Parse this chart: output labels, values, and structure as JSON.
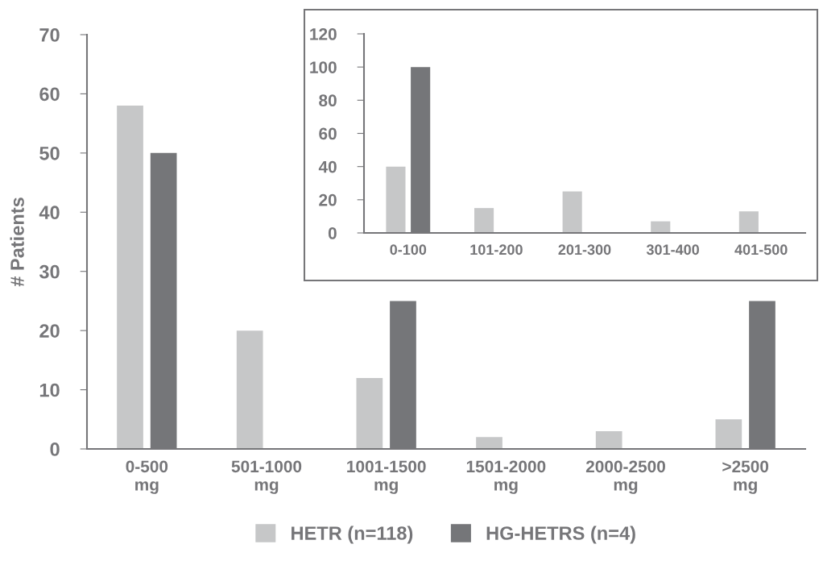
{
  "chart_data": [
    {
      "type": "bar",
      "ylabel": "# Patients",
      "categories": [
        "0-500\nmg",
        "501-1000\nmg",
        "1001-1500\nmg",
        "1501-2000\nmg",
        "2000-2500\nmg",
        ">2500\nmg"
      ],
      "series": [
        {
          "name": "HETR (n=118)",
          "color": "#c6c7c8",
          "values": [
            58,
            20,
            12,
            2,
            3,
            5
          ]
        },
        {
          "name": "HG-HETRS (n=4)",
          "color": "#757679",
          "values": [
            50,
            0,
            25,
            0,
            0,
            25
          ]
        }
      ],
      "ylim": [
        0,
        70
      ],
      "yticks": [
        0,
        10,
        20,
        30,
        40,
        50,
        60,
        70
      ],
      "grid": false,
      "legend": "bottom"
    },
    {
      "type": "bar",
      "categories": [
        "0-100",
        "101-200",
        "201-300",
        "301-400",
        "401-500"
      ],
      "series": [
        {
          "color": "#c6c7c8",
          "values": [
            40,
            15,
            25,
            7,
            13
          ]
        },
        {
          "color": "#757679",
          "values": [
            100,
            0,
            0,
            0,
            0
          ]
        }
      ],
      "ylim": [
        0,
        120
      ],
      "yticks": [
        0,
        20,
        40,
        60,
        80,
        100,
        120
      ],
      "grid": false
    }
  ]
}
